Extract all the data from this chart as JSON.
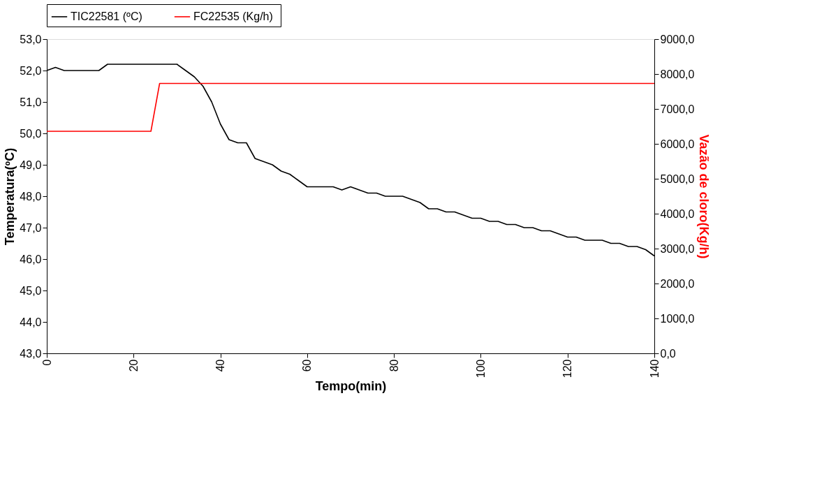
{
  "chart_data": {
    "type": "line",
    "xlabel": "Tempo(min)",
    "ylabel": "Temperatura(ºC)",
    "y2label": "Vazão de cloro(Kg/h)",
    "xlim": [
      0,
      140
    ],
    "xticks": [
      0,
      20,
      40,
      60,
      80,
      100,
      120,
      140
    ],
    "ylim": [
      43,
      53
    ],
    "yticks": [
      {
        "value": 43,
        "label": "43,0"
      },
      {
        "value": 44,
        "label": "44,0"
      },
      {
        "value": 45,
        "label": "45,0"
      },
      {
        "value": 46,
        "label": "46,0"
      },
      {
        "value": 47,
        "label": "47,0"
      },
      {
        "value": 48,
        "label": "48,0"
      },
      {
        "value": 49,
        "label": "49,0"
      },
      {
        "value": 50,
        "label": "50,0"
      },
      {
        "value": 51,
        "label": "51,0"
      },
      {
        "value": 52,
        "label": "52,0"
      },
      {
        "value": 53,
        "label": "53,0"
      }
    ],
    "y2lim": [
      0,
      9000
    ],
    "y2ticks": [
      {
        "value": 0,
        "label": "0,0"
      },
      {
        "value": 1000,
        "label": "1000,0"
      },
      {
        "value": 2000,
        "label": "2000,0"
      },
      {
        "value": 3000,
        "label": "3000,0"
      },
      {
        "value": 4000,
        "label": "4000,0"
      },
      {
        "value": 5000,
        "label": "5000,0"
      },
      {
        "value": 6000,
        "label": "6000,0"
      },
      {
        "value": 7000,
        "label": "7000,0"
      },
      {
        "value": 8000,
        "label": "8000,0"
      },
      {
        "value": 9000,
        "label": "9000,0"
      }
    ],
    "grid": false,
    "legend": "top",
    "marker": "none",
    "line_style": "solid",
    "series": [
      {
        "name": "TIC22581      (ºC)",
        "color": "#000000",
        "x": [
          0,
          2,
          4,
          6,
          8,
          10,
          12,
          14,
          16,
          18,
          20,
          22,
          24,
          26,
          28,
          30,
          32,
          34,
          36,
          38,
          40,
          42,
          44,
          46,
          48,
          50,
          52,
          54,
          56,
          58,
          60,
          62,
          64,
          66,
          68,
          70,
          72,
          74,
          76,
          78,
          80,
          82,
          84,
          86,
          88,
          90,
          92,
          94,
          96,
          98,
          100,
          102,
          104,
          106,
          108,
          110,
          112,
          114,
          116,
          118,
          120,
          122,
          124,
          126,
          128,
          130,
          132,
          134,
          136,
          138,
          140
        ],
        "values": [
          52.0,
          52.1,
          52.0,
          52.0,
          52.0,
          52.0,
          52.0,
          52.2,
          52.2,
          52.2,
          52.2,
          52.2,
          52.2,
          52.2,
          52.2,
          52.2,
          52.0,
          51.8,
          51.5,
          51.0,
          50.3,
          49.8,
          49.7,
          49.7,
          49.2,
          49.1,
          49.0,
          48.8,
          48.7,
          48.5,
          48.3,
          48.3,
          48.3,
          48.3,
          48.2,
          48.3,
          48.2,
          48.1,
          48.1,
          48.0,
          48.0,
          48.0,
          47.9,
          47.8,
          47.6,
          47.6,
          47.5,
          47.5,
          47.4,
          47.3,
          47.3,
          47.2,
          47.2,
          47.1,
          47.1,
          47.0,
          47.0,
          46.9,
          46.9,
          46.8,
          46.7,
          46.7,
          46.6,
          46.6,
          46.6,
          46.5,
          46.5,
          46.4,
          46.4,
          46.3,
          46.1
        ]
      },
      {
        "name": "FC22535  (Kg/h)",
        "color": "#ff0000",
        "axis": "y2",
        "x": [
          0,
          24,
          26,
          140
        ],
        "values": [
          6360,
          6360,
          7730,
          7730
        ]
      }
    ]
  }
}
